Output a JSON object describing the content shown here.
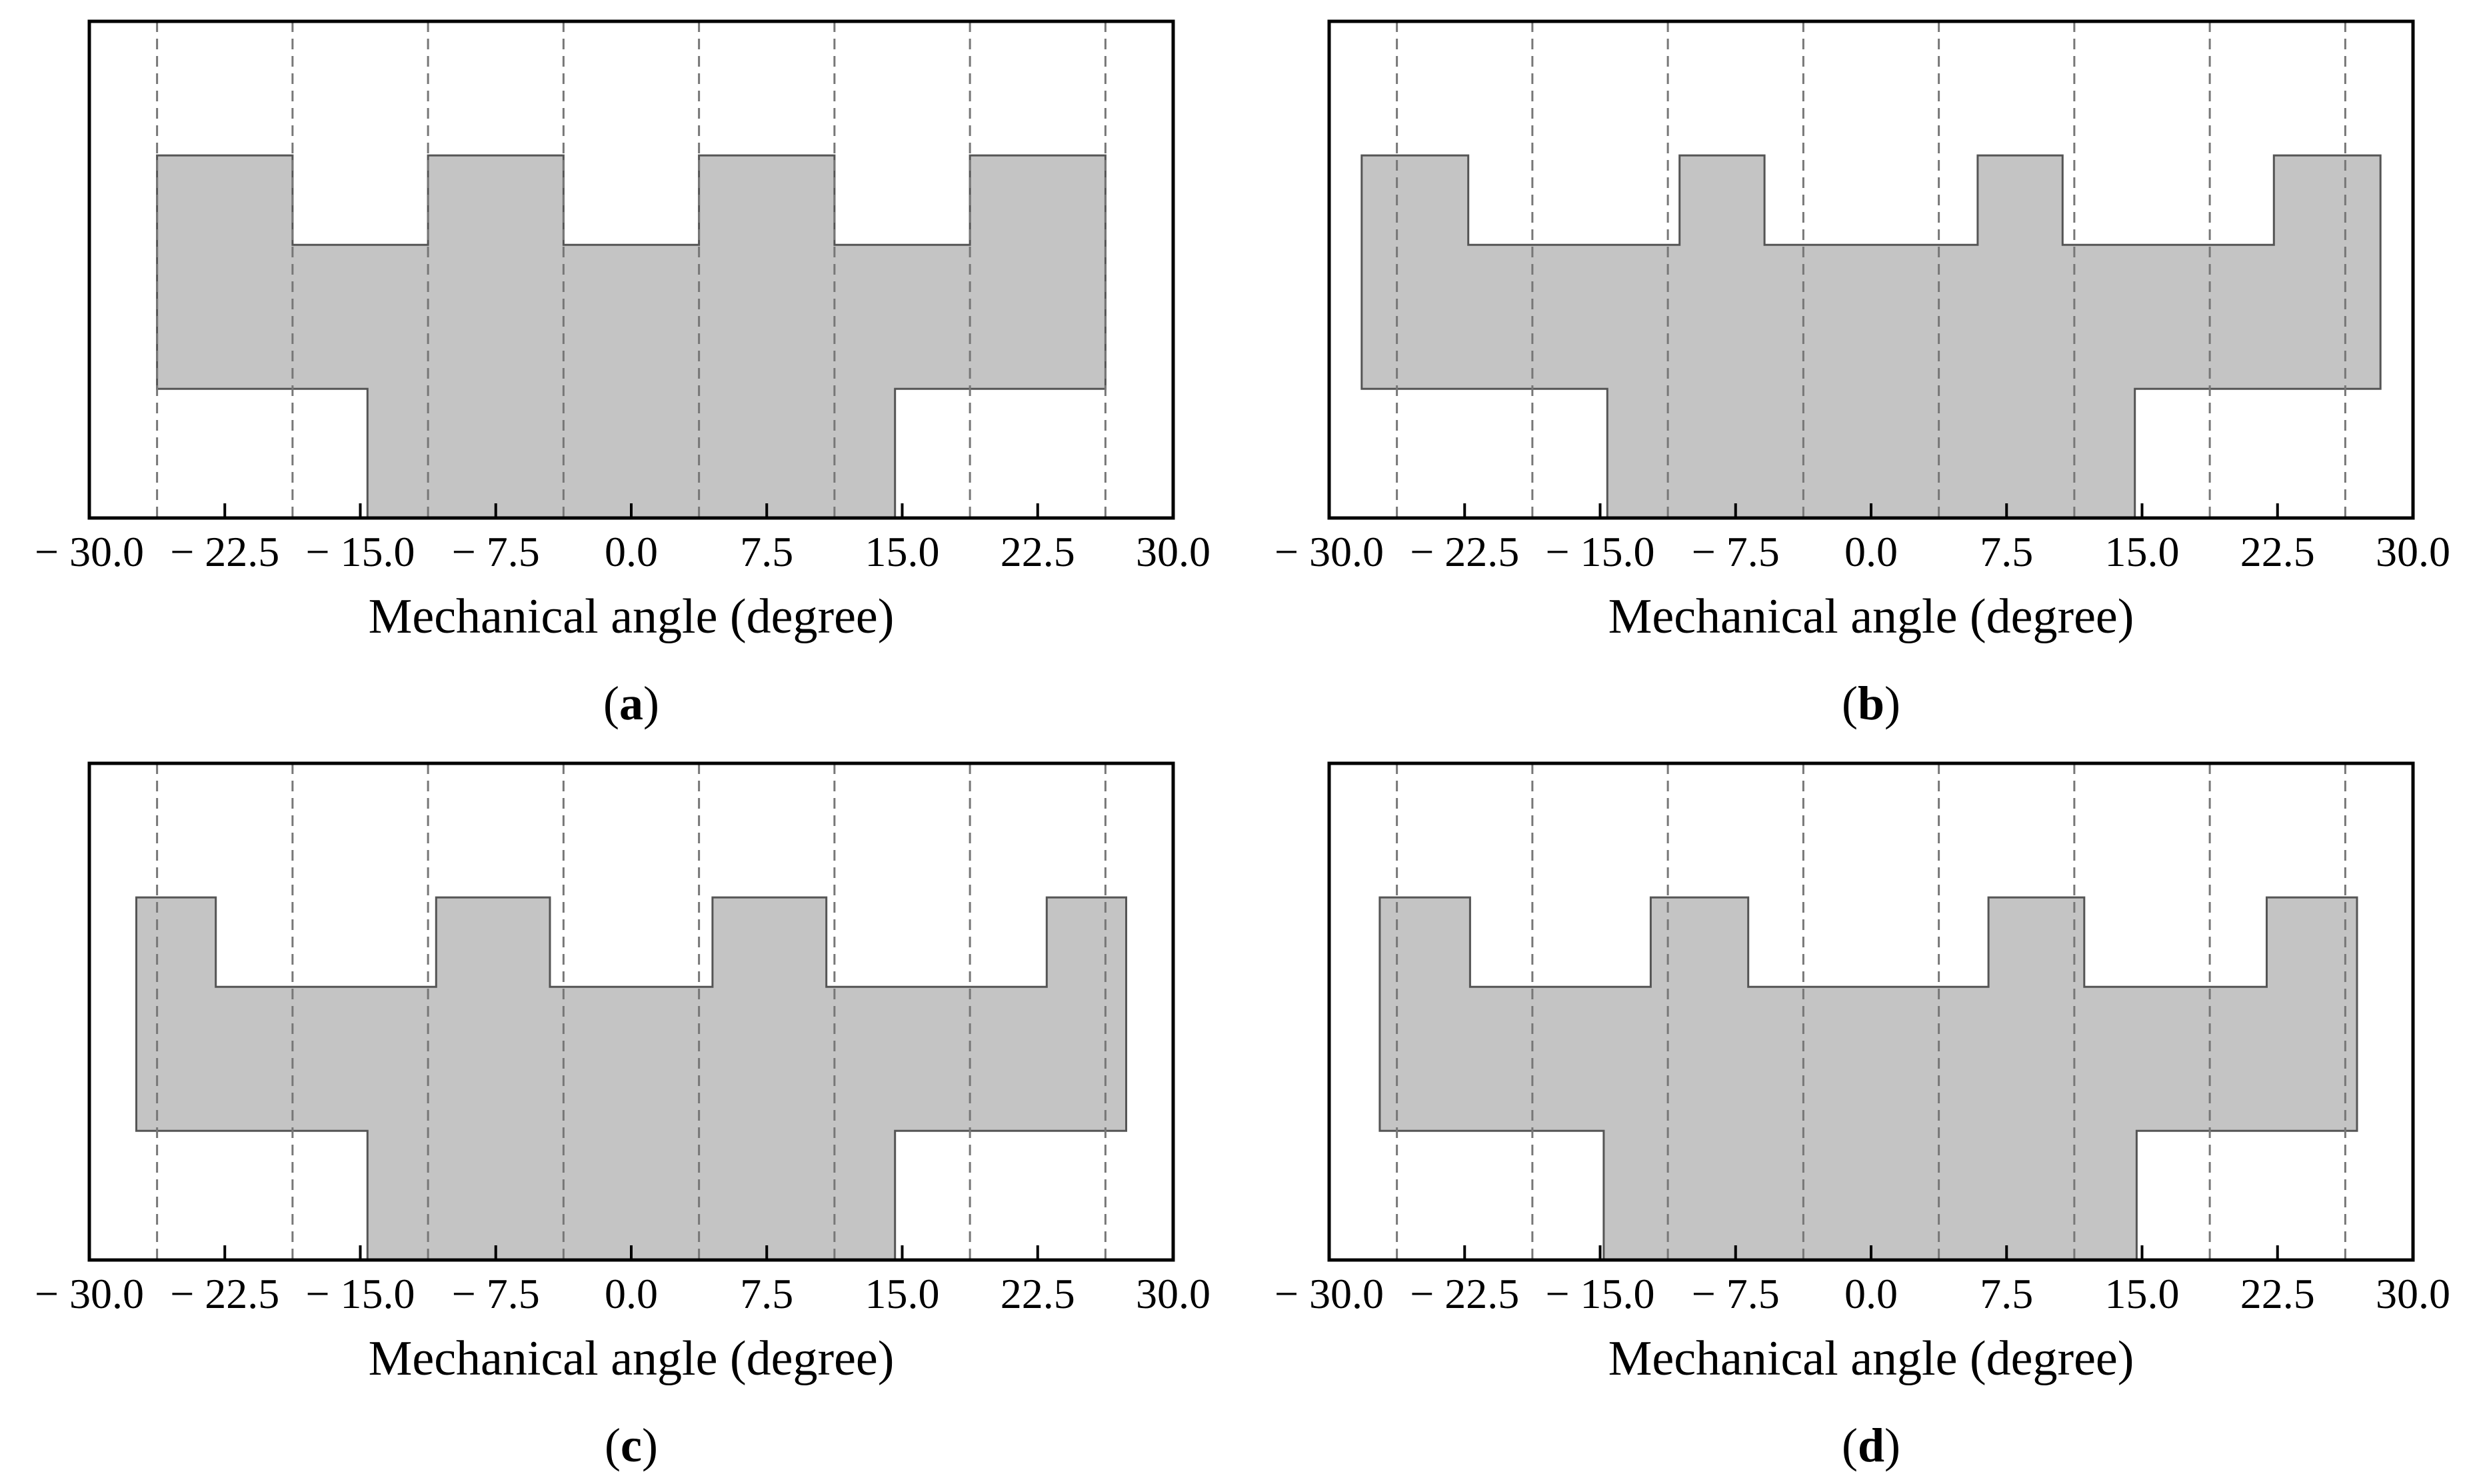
{
  "colors": {
    "fill": "#c4c4c4",
    "outline": "#555555",
    "frame": "#000000",
    "gridline": "#777777"
  },
  "chart_data": [
    {
      "panel": "a",
      "caption": {
        "open": "(",
        "letter": "a",
        "close": ")"
      },
      "type": "area",
      "xlabel": "Mechanical angle (degree)",
      "ylabel": "",
      "xlim": [
        -30.0,
        30.0
      ],
      "ylim": [
        0,
        1
      ],
      "grid": "dashed vertical lines",
      "ticks": [
        -30.0,
        -22.5,
        -15.0,
        -7.5,
        0.0,
        7.5,
        15.0,
        22.5,
        30.0
      ],
      "tick_labels": [
        "− 30.0",
        "− 22.5",
        "− 15.0",
        "− 7.5",
        "0.0",
        "7.5",
        "15.0",
        "22.5",
        "30.0"
      ],
      "dashed_lines_x": [
        -26.25,
        -18.75,
        -11.25,
        -3.75,
        3.75,
        11.25,
        18.75,
        26.25
      ],
      "outline": [
        [
          -26.25,
          0.26
        ],
        [
          -26.25,
          0.73
        ],
        [
          -18.75,
          0.73
        ],
        [
          -18.75,
          0.55
        ],
        [
          -11.25,
          0.55
        ],
        [
          -11.25,
          0.73
        ],
        [
          -3.75,
          0.73
        ],
        [
          -3.75,
          0.55
        ],
        [
          3.75,
          0.55
        ],
        [
          3.75,
          0.73
        ],
        [
          11.25,
          0.73
        ],
        [
          11.25,
          0.55
        ],
        [
          18.75,
          0.55
        ],
        [
          18.75,
          0.73
        ],
        [
          26.25,
          0.73
        ],
        [
          26.25,
          0.26
        ],
        [
          14.6,
          0.26
        ],
        [
          14.6,
          0
        ],
        [
          -14.6,
          0
        ],
        [
          -14.6,
          0.26
        ]
      ]
    },
    {
      "panel": "b",
      "caption": {
        "open": "(",
        "letter": "b",
        "close": ")"
      },
      "type": "area",
      "xlabel": "Mechanical angle (degree)",
      "ylabel": "",
      "xlim": [
        -30.0,
        30.0
      ],
      "ylim": [
        0,
        1
      ],
      "grid": "dashed vertical lines",
      "ticks": [
        -30.0,
        -22.5,
        -15.0,
        -7.5,
        0.0,
        7.5,
        15.0,
        22.5,
        30.0
      ],
      "tick_labels": [
        "− 30.0",
        "− 22.5",
        "− 15.0",
        "− 7.5",
        "0.0",
        "7.5",
        "15.0",
        "22.5",
        "30.0"
      ],
      "dashed_lines_x": [
        -26.25,
        -18.75,
        -11.25,
        -3.75,
        3.75,
        11.25,
        18.75,
        26.25
      ],
      "outline": [
        [
          -28.2,
          0.26
        ],
        [
          -28.2,
          0.73
        ],
        [
          -22.3,
          0.73
        ],
        [
          -22.3,
          0.55
        ],
        [
          -10.6,
          0.55
        ],
        [
          -10.6,
          0.73
        ],
        [
          -5.9,
          0.73
        ],
        [
          -5.9,
          0.55
        ],
        [
          5.9,
          0.55
        ],
        [
          5.9,
          0.73
        ],
        [
          10.6,
          0.73
        ],
        [
          10.6,
          0.55
        ],
        [
          22.3,
          0.55
        ],
        [
          22.3,
          0.73
        ],
        [
          28.2,
          0.73
        ],
        [
          28.2,
          0.26
        ],
        [
          14.6,
          0.26
        ],
        [
          14.6,
          0
        ],
        [
          -14.6,
          0
        ],
        [
          -14.6,
          0.26
        ]
      ]
    },
    {
      "panel": "c",
      "caption": {
        "open": "(",
        "letter": "c",
        "close": ")"
      },
      "type": "area",
      "xlabel": "Mechanical angle (degree)",
      "ylabel": "",
      "xlim": [
        -30.0,
        30.0
      ],
      "ylim": [
        0,
        1
      ],
      "grid": "dashed vertical lines",
      "ticks": [
        -30.0,
        -22.5,
        -15.0,
        -7.5,
        0.0,
        7.5,
        15.0,
        22.5,
        30.0
      ],
      "tick_labels": [
        "− 30.0",
        "− 22.5",
        "− 15.0",
        "− 7.5",
        "0.0",
        "7.5",
        "15.0",
        "22.5",
        "30.0"
      ],
      "dashed_lines_x": [
        -26.25,
        -18.75,
        -11.25,
        -3.75,
        3.75,
        11.25,
        18.75,
        26.25
      ],
      "outline": [
        [
          -27.4,
          0.26
        ],
        [
          -27.4,
          0.73
        ],
        [
          -23.0,
          0.73
        ],
        [
          -23.0,
          0.55
        ],
        [
          -10.8,
          0.55
        ],
        [
          -10.8,
          0.73
        ],
        [
          -4.5,
          0.73
        ],
        [
          -4.5,
          0.55
        ],
        [
          4.5,
          0.55
        ],
        [
          4.5,
          0.73
        ],
        [
          10.8,
          0.73
        ],
        [
          10.8,
          0.55
        ],
        [
          23.0,
          0.55
        ],
        [
          23.0,
          0.73
        ],
        [
          27.4,
          0.73
        ],
        [
          27.4,
          0.26
        ],
        [
          14.6,
          0.26
        ],
        [
          14.6,
          0
        ],
        [
          -14.6,
          0
        ],
        [
          -14.6,
          0.26
        ]
      ]
    },
    {
      "panel": "d",
      "caption": {
        "open": "(",
        "letter": "d",
        "close": ")"
      },
      "type": "area",
      "xlabel": "Mechanical angle (degree)",
      "ylabel": "",
      "xlim": [
        -30.0,
        30.0
      ],
      "ylim": [
        0,
        1
      ],
      "grid": "dashed vertical lines",
      "ticks": [
        -30.0,
        -22.5,
        -15.0,
        -7.5,
        0.0,
        7.5,
        15.0,
        22.5,
        30.0
      ],
      "tick_labels": [
        "− 30.0",
        "− 22.5",
        "− 15.0",
        "− 7.5",
        "0.0",
        "7.5",
        "15.0",
        "22.5",
        "30.0"
      ],
      "dashed_lines_x": [
        -26.25,
        -18.75,
        -11.25,
        -3.75,
        3.75,
        11.25,
        18.75,
        26.25
      ],
      "outline": [
        [
          -27.2,
          0.26
        ],
        [
          -27.2,
          0.73
        ],
        [
          -22.2,
          0.73
        ],
        [
          -22.2,
          0.55
        ],
        [
          -12.2,
          0.55
        ],
        [
          -12.2,
          0.73
        ],
        [
          -6.8,
          0.73
        ],
        [
          -6.8,
          0.55
        ],
        [
          6.5,
          0.55
        ],
        [
          6.5,
          0.73
        ],
        [
          11.8,
          0.73
        ],
        [
          11.8,
          0.55
        ],
        [
          21.9,
          0.55
        ],
        [
          21.9,
          0.73
        ],
        [
          26.9,
          0.73
        ],
        [
          26.9,
          0.26
        ],
        [
          14.7,
          0.26
        ],
        [
          14.7,
          0
        ],
        [
          -14.8,
          0
        ],
        [
          -14.8,
          0.26
        ]
      ]
    }
  ]
}
